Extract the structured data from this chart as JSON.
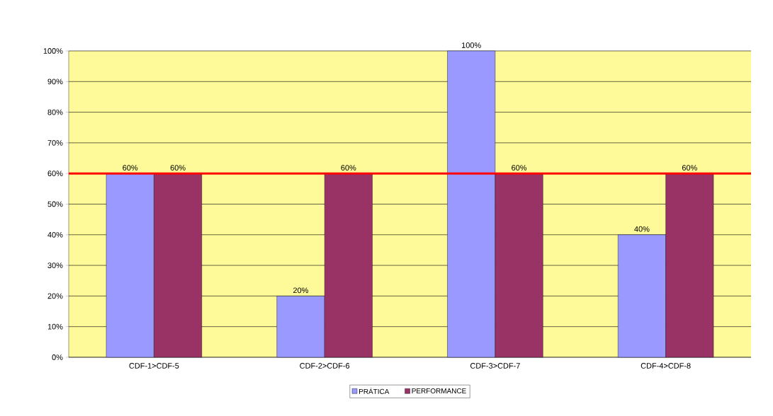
{
  "chart_data": {
    "type": "bar",
    "categories": [
      "CDF-1>CDF-5",
      "CDF-2>CDF-6",
      "CDF-3>CDF-7",
      "CDF-4>CDF-8"
    ],
    "series": [
      {
        "name": "PRÁTICA",
        "color": "#9999ff",
        "values": [
          60,
          20,
          100,
          40
        ],
        "value_labels": [
          "60%",
          "20%",
          "100%",
          "40%"
        ]
      },
      {
        "name": "PERFORMANCE",
        "color": "#993366",
        "values": [
          60,
          60,
          60,
          60
        ],
        "value_labels": [
          "60%",
          "60%",
          "60%",
          "60%"
        ]
      }
    ],
    "ylim": [
      0,
      100
    ],
    "yticks": [
      {
        "value": 0,
        "label": "0%"
      },
      {
        "value": 10,
        "label": "10%"
      },
      {
        "value": 20,
        "label": "20%"
      },
      {
        "value": 30,
        "label": "30%"
      },
      {
        "value": 40,
        "label": "40%"
      },
      {
        "value": 50,
        "label": "50%"
      },
      {
        "value": 60,
        "label": "60%"
      },
      {
        "value": 70,
        "label": "70%"
      },
      {
        "value": 80,
        "label": "80%"
      },
      {
        "value": 90,
        "label": "90%"
      },
      {
        "value": 100,
        "label": "100%"
      }
    ],
    "ref_lines": [
      {
        "axis": "y",
        "value": 60,
        "color": "#ff0000"
      }
    ],
    "grid": "y",
    "legend": "bottom"
  }
}
